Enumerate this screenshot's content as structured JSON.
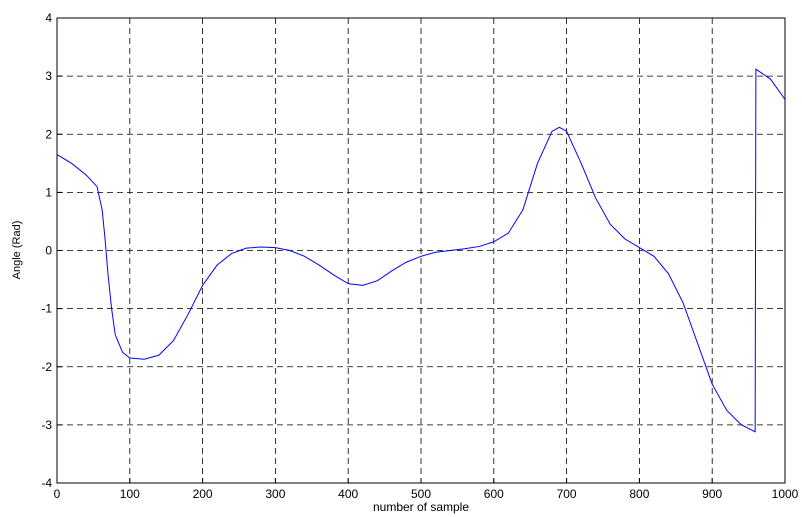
{
  "chart_data": {
    "type": "line",
    "xlabel": "number of sample",
    "ylabel": "Angle (Rad)",
    "xlim": [
      0,
      1000
    ],
    "ylim": [
      -4,
      4
    ],
    "xticks": [
      0,
      100,
      200,
      300,
      400,
      500,
      600,
      700,
      800,
      900,
      1000
    ],
    "yticks": [
      -4,
      -3,
      -2,
      -1,
      0,
      1,
      2,
      3,
      4
    ],
    "grid": true,
    "x": [
      0,
      20,
      40,
      55,
      62,
      66,
      70,
      75,
      80,
      90,
      100,
      120,
      140,
      160,
      180,
      200,
      220,
      240,
      260,
      280,
      300,
      320,
      340,
      360,
      380,
      400,
      420,
      440,
      460,
      480,
      500,
      520,
      540,
      560,
      580,
      600,
      620,
      640,
      660,
      680,
      690,
      700,
      720,
      740,
      760,
      780,
      800,
      820,
      840,
      860,
      880,
      900,
      920,
      940,
      959,
      960,
      980,
      1000
    ],
    "series": [
      {
        "color": "#0000ff",
        "values": [
          1.65,
          1.5,
          1.3,
          1.1,
          0.7,
          0.2,
          -0.4,
          -1.0,
          -1.45,
          -1.75,
          -1.85,
          -1.87,
          -1.8,
          -1.55,
          -1.1,
          -0.6,
          -0.25,
          -0.05,
          0.04,
          0.06,
          0.05,
          0.0,
          -0.1,
          -0.25,
          -0.42,
          -0.57,
          -0.6,
          -0.52,
          -0.35,
          -0.2,
          -0.1,
          -0.03,
          0.0,
          0.03,
          0.07,
          0.15,
          0.3,
          0.7,
          1.5,
          2.05,
          2.12,
          2.05,
          1.5,
          0.9,
          0.45,
          0.2,
          0.05,
          -0.1,
          -0.4,
          -0.9,
          -1.6,
          -2.3,
          -2.75,
          -3.0,
          -3.12,
          3.12,
          2.95,
          2.6
        ]
      }
    ]
  }
}
